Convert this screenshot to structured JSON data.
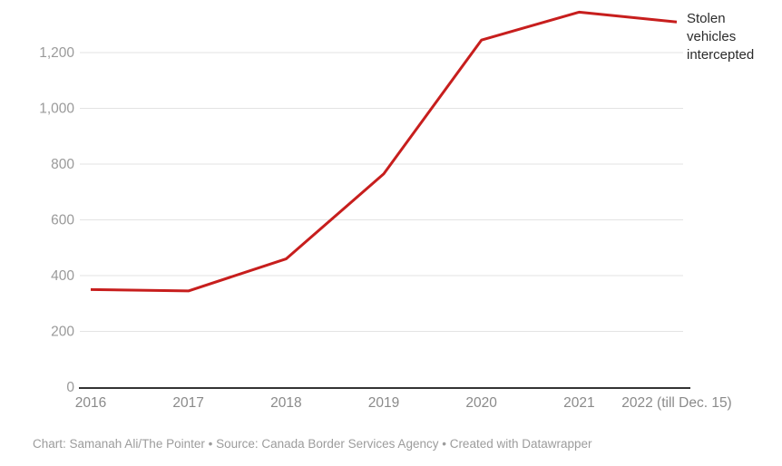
{
  "chart_data": {
    "type": "line",
    "title": "",
    "xlabel": "",
    "ylabel": "",
    "x": [
      "2016",
      "2017",
      "2018",
      "2019",
      "2020",
      "2021",
      "2022 (till Dec. 15)"
    ],
    "series": [
      {
        "name": "Stolen vehicles intercepted",
        "values": [
          350,
          345,
          460,
          765,
          1245,
          1345,
          1310
        ]
      }
    ],
    "ylim": [
      0,
      1400
    ],
    "yticks": [
      0,
      200,
      400,
      600,
      800,
      1000,
      1200
    ],
    "ytick_labels": [
      "0",
      "200",
      "400",
      "600",
      "800",
      "1,000",
      "1,200"
    ],
    "grid": "horizontal",
    "legend_position": "annotation-right-of-line-end",
    "annotation_label": "Stolen vehicles intercepted",
    "colors": {
      "line": "#c71e1d",
      "gridline": "#e3e3e3",
      "baseline": "#333333",
      "ytick_text": "#9a9a9a",
      "xtick_text": "#8a8a8a",
      "annotation_text": "#2b2b2b",
      "caption_text": "#9c9c9c",
      "background": "#ffffff"
    }
  },
  "footer": {
    "caption": "Chart: Samanah Ali/The Pointer • Source: Canada Border Services Agency • Created with Datawrapper"
  }
}
